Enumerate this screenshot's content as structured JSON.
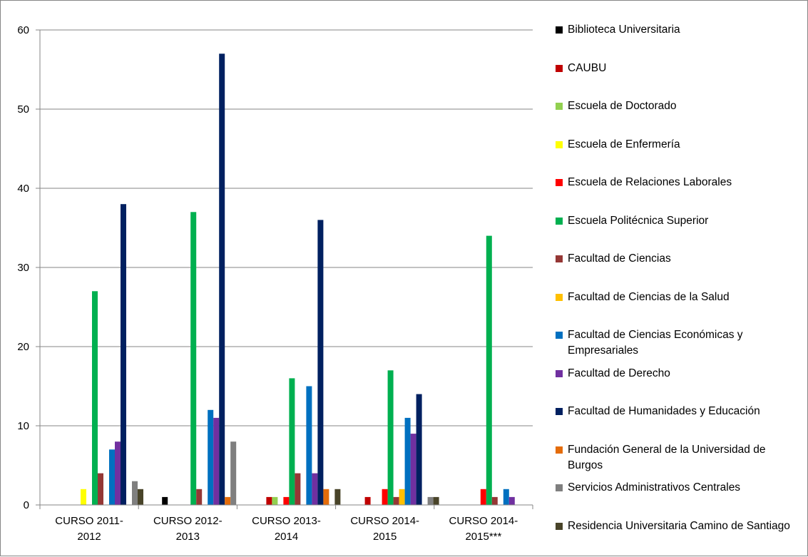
{
  "chart_data": {
    "type": "bar",
    "categories": [
      [
        "CURSO 2011-",
        "2012"
      ],
      [
        "CURSO 2012-",
        "2013"
      ],
      [
        "CURSO 2013-",
        "2014"
      ],
      [
        "CURSO 2014-",
        "2015"
      ],
      [
        "CURSO 2014-",
        "2015***"
      ]
    ],
    "ylim": [
      0,
      60
    ],
    "yticks": [
      0,
      10,
      20,
      30,
      40,
      50,
      60
    ],
    "grid": true,
    "legend_position": "right",
    "series": [
      {
        "name": "Biblioteca Universitaria",
        "color": "#000000",
        "values": [
          0,
          1,
          0,
          0,
          0
        ]
      },
      {
        "name": "CAUBU",
        "color": "#C00000",
        "values": [
          0,
          0,
          1,
          1,
          0
        ]
      },
      {
        "name": "Escuela de Doctorado",
        "color": "#92D050",
        "values": [
          0,
          0,
          1,
          0,
          0
        ]
      },
      {
        "name": "Escuela de Enfermería",
        "color": "#FFFF00",
        "values": [
          2,
          0,
          0,
          0,
          0
        ]
      },
      {
        "name": "Escuela de Relaciones Laborales",
        "color": "#FF0000",
        "values": [
          0,
          0,
          1,
          2,
          2
        ]
      },
      {
        "name": "Escuela Politécnica Superior",
        "color": "#00B050",
        "values": [
          27,
          37,
          16,
          17,
          34
        ]
      },
      {
        "name": "Facultad de Ciencias",
        "color": "#953735",
        "values": [
          4,
          2,
          4,
          1,
          1
        ]
      },
      {
        "name": "Facultad de Ciencias de la Salud",
        "color": "#FFC000",
        "values": [
          0,
          0,
          0,
          2,
          0
        ]
      },
      {
        "name": "Facultad de Ciencias Económicas y Empresariales",
        "color": "#0070C0",
        "values": [
          7,
          12,
          15,
          11,
          2
        ]
      },
      {
        "name": "Facultad de Derecho",
        "color": "#7030A0",
        "values": [
          8,
          11,
          4,
          9,
          1
        ]
      },
      {
        "name": "Facultad de Humanidades y Educación",
        "color": "#002060",
        "values": [
          38,
          57,
          36,
          14,
          0
        ]
      },
      {
        "name": "Fundación General de la Universidad de Burgos",
        "color": "#E46C0A",
        "values": [
          0,
          1,
          2,
          0,
          0
        ]
      },
      {
        "name": "Servicios Administrativos Centrales",
        "color": "#7F7F7F",
        "values": [
          3,
          8,
          0,
          1,
          0
        ]
      },
      {
        "name": "Residencia Universitaria Camino de Santiago",
        "color": "#494429",
        "values": [
          2,
          0,
          2,
          1,
          0
        ]
      }
    ]
  }
}
